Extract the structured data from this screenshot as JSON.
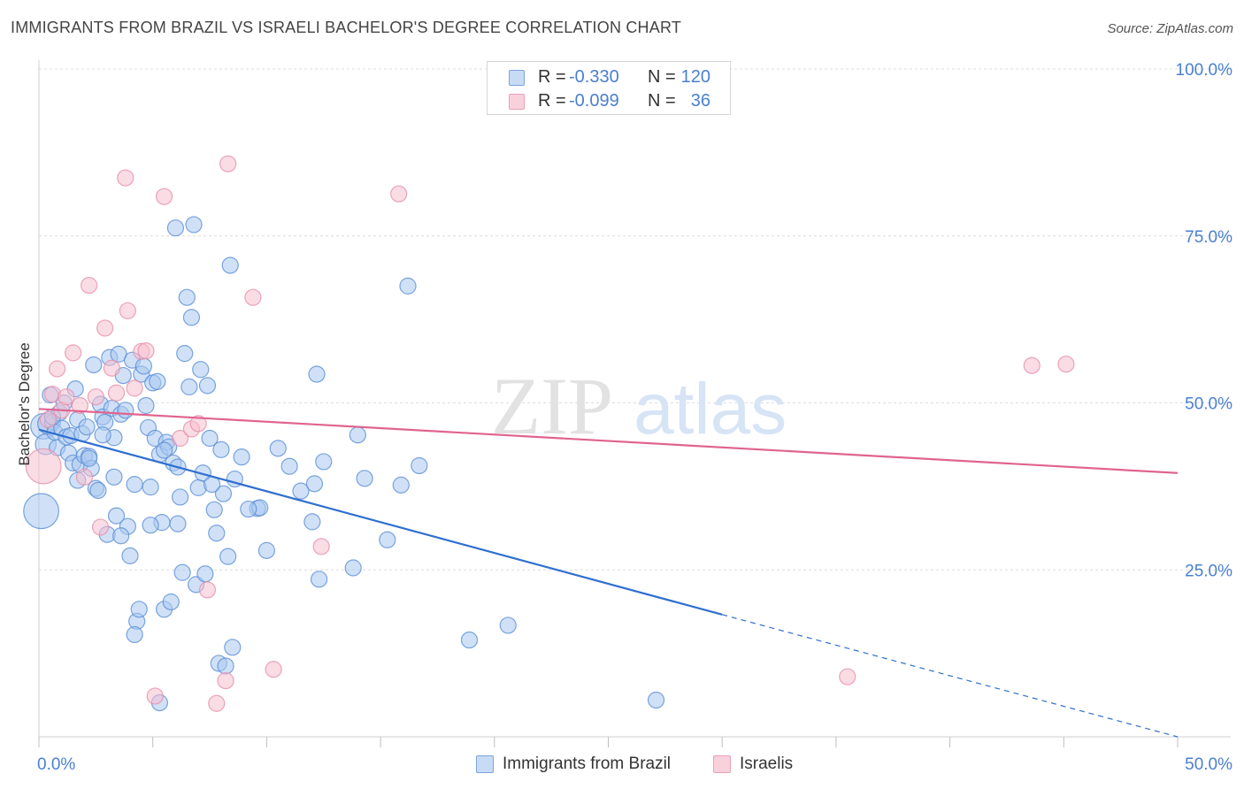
{
  "title": "IMMIGRANTS FROM BRAZIL VS ISRAELI BACHELOR'S DEGREE CORRELATION CHART",
  "source": "Source: ZipAtlas.com",
  "watermark": {
    "zip": "ZIP",
    "atlas": "atlas"
  },
  "colors": {
    "brazil_fill": "#a9c8f0",
    "brazil_stroke": "#5b8fd6",
    "brazil_line": "#2f6fd0",
    "israeli_fill": "#f6c0d0",
    "israeli_stroke": "#e68fab",
    "israeli_line": "#e0648f",
    "grid": "#dcdcdc",
    "tick_label": "#4a80d0"
  },
  "stats": [
    {
      "r_label": "R =",
      "r_value": "-0.330",
      "n_label": "N =",
      "n_value": "120"
    },
    {
      "r_label": "R =",
      "r_value": "-0.099",
      "n_label": "N =",
      "n_value": "36"
    }
  ],
  "legend": [
    "Immigrants from Brazil",
    "Israelis"
  ],
  "chart_data": {
    "type": "scatter",
    "title": "IMMIGRANTS FROM BRAZIL VS ISRAELI BACHELOR'S DEGREE CORRELATION CHART",
    "xlabel": "",
    "ylabel": "Bachelor's Degree",
    "xlim": [
      0,
      50
    ],
    "ylim": [
      0,
      100
    ],
    "x_tick_labels": [
      "0.0%",
      "50.0%"
    ],
    "y_ticks": [
      {
        "value": 25,
        "label": "25.0%"
      },
      {
        "value": 50,
        "label": "50.0%"
      },
      {
        "value": 75,
        "label": "75.0%"
      },
      {
        "value": 100,
        "label": "100.0%"
      }
    ],
    "grid": true,
    "legend_position": "bottom-center",
    "series": [
      {
        "name": "Immigrants from Brazil",
        "trend": {
          "x1": 0,
          "y1": 46,
          "x2": 30,
          "y2": 18.3,
          "dashed_to_x": 50,
          "dashed_to_y": 0
        },
        "points": [
          [
            0.1,
            33.8,
            2.2
          ],
          [
            0.2,
            46.5,
            1.6
          ],
          [
            0.3,
            43.8,
            1.3
          ],
          [
            0.4,
            46.9,
            1.3
          ],
          [
            0.5,
            51.2,
            1
          ],
          [
            0.6,
            47.1,
            1
          ],
          [
            0.7,
            45.6,
            1
          ],
          [
            0.8,
            43.3,
            1
          ],
          [
            0.9,
            48.5,
            1
          ],
          [
            1,
            46.2,
            1
          ],
          [
            1.1,
            50,
            1
          ],
          [
            1.2,
            44.9,
            1
          ],
          [
            1.3,
            42.5,
            1
          ],
          [
            1.4,
            45.1,
            1
          ],
          [
            1.5,
            41,
            1
          ],
          [
            1.6,
            52.1,
            1
          ],
          [
            1.7,
            47.5,
            1
          ],
          [
            1.8,
            40.8,
            1
          ],
          [
            1.9,
            45.4,
            1
          ],
          [
            2,
            42.1,
            1
          ],
          [
            2.1,
            46.4,
            1
          ],
          [
            2.2,
            42,
            1
          ],
          [
            2.3,
            40.2,
            1
          ],
          [
            2.4,
            55.7,
            1
          ],
          [
            2.5,
            37.2,
            1
          ],
          [
            2.6,
            36.9,
            1
          ],
          [
            2.7,
            49.8,
            1
          ],
          [
            2.8,
            47.9,
            1
          ],
          [
            2.9,
            47.1,
            1
          ],
          [
            3,
            30.3,
            1
          ],
          [
            3.1,
            56.8,
            1
          ],
          [
            3.2,
            49.2,
            1
          ],
          [
            3.3,
            44.8,
            1
          ],
          [
            3.4,
            33.1,
            1
          ],
          [
            3.5,
            57.3,
            1
          ],
          [
            3.6,
            48.3,
            1
          ],
          [
            3.7,
            54.1,
            1
          ],
          [
            3.8,
            48.9,
            1
          ],
          [
            3.9,
            31.5,
            1
          ],
          [
            4,
            27.1,
            1
          ],
          [
            4.1,
            56.4,
            1
          ],
          [
            4.2,
            37.8,
            1
          ],
          [
            4.3,
            17.3,
            1
          ],
          [
            4.4,
            19.1,
            1
          ],
          [
            4.5,
            54.3,
            1
          ],
          [
            4.6,
            55.5,
            1
          ],
          [
            4.7,
            49.6,
            1
          ],
          [
            4.8,
            46.3,
            1
          ],
          [
            4.9,
            37.4,
            1
          ],
          [
            5,
            53,
            1
          ],
          [
            5.1,
            44.7,
            1
          ],
          [
            5.2,
            53.2,
            1
          ],
          [
            5.3,
            42.3,
            1
          ],
          [
            5.4,
            32.1,
            1
          ],
          [
            5.5,
            19.1,
            1
          ],
          [
            5.6,
            44.1,
            1
          ],
          [
            5.7,
            43.4,
            1
          ],
          [
            5.8,
            20.2,
            1
          ],
          [
            5.9,
            41,
            1
          ],
          [
            6,
            76.2,
            1
          ],
          [
            6.1,
            40.4,
            1
          ],
          [
            6.2,
            35.9,
            1
          ],
          [
            6.3,
            24.6,
            1
          ],
          [
            6.4,
            57.4,
            1
          ],
          [
            6.5,
            65.8,
            1
          ],
          [
            6.6,
            52.4,
            1
          ],
          [
            6.7,
            62.8,
            1
          ],
          [
            6.8,
            76.7,
            1
          ],
          [
            6.9,
            22.8,
            1
          ],
          [
            7,
            37.3,
            1
          ],
          [
            7.1,
            55,
            1
          ],
          [
            7.2,
            39.5,
            1
          ],
          [
            7.3,
            24.4,
            1
          ],
          [
            7.4,
            52.6,
            1
          ],
          [
            7.5,
            44.7,
            1
          ],
          [
            7.7,
            34,
            1
          ],
          [
            7.8,
            30.5,
            1
          ],
          [
            7.9,
            11,
            1
          ],
          [
            8,
            43,
            1
          ],
          [
            8.1,
            36.4,
            1
          ],
          [
            8.2,
            10.6,
            1
          ],
          [
            8.3,
            27,
            1
          ],
          [
            8.4,
            70.6,
            1
          ],
          [
            8.5,
            13.4,
            1
          ],
          [
            8.6,
            38.6,
            1
          ],
          [
            9.6,
            34.2,
            1
          ],
          [
            9.7,
            34.3,
            1
          ],
          [
            10,
            27.9,
            1
          ],
          [
            10.5,
            43.2,
            1
          ],
          [
            11,
            40.5,
            1
          ],
          [
            11.5,
            36.8,
            1
          ],
          [
            12,
            32.2,
            1
          ],
          [
            12.1,
            37.9,
            1
          ],
          [
            12.2,
            54.3,
            1
          ],
          [
            12.3,
            23.6,
            1
          ],
          [
            12.5,
            41.2,
            1
          ],
          [
            13.8,
            25.3,
            1
          ],
          [
            14,
            45.2,
            1
          ],
          [
            14.3,
            38.7,
            1
          ],
          [
            15.3,
            29.5,
            1
          ],
          [
            15.9,
            37.7,
            1
          ],
          [
            16.2,
            67.5,
            1
          ],
          [
            16.7,
            40.6,
            1
          ],
          [
            18.9,
            14.5,
            1
          ],
          [
            20.6,
            16.7,
            1
          ],
          [
            27.1,
            5.5,
            1
          ],
          [
            5.3,
            5.1,
            1
          ],
          [
            4.2,
            15.3,
            1
          ],
          [
            6.1,
            31.9,
            1
          ],
          [
            2.8,
            45.2,
            1
          ],
          [
            9.2,
            34.1,
            1
          ],
          [
            4.9,
            31.7,
            1
          ],
          [
            3.3,
            38.9,
            1
          ],
          [
            1.7,
            38.4,
            1
          ],
          [
            0.6,
            47.9,
            1
          ],
          [
            2.2,
            41.7,
            1
          ],
          [
            3.6,
            30.1,
            1
          ],
          [
            5.5,
            42.9,
            1
          ],
          [
            7.6,
            37.8,
            1
          ],
          [
            8.9,
            41.9,
            1
          ]
        ]
      },
      {
        "name": "Israelis",
        "trend": {
          "x1": 0,
          "y1": 49.1,
          "x2": 50,
          "y2": 39.5
        },
        "points": [
          [
            0.2,
            40.5,
            2.2
          ],
          [
            0.6,
            51.3,
            1
          ],
          [
            0.8,
            55.1,
            1
          ],
          [
            1,
            48.9,
            1
          ],
          [
            1.2,
            50.9,
            1
          ],
          [
            1.5,
            57.5,
            1
          ],
          [
            1.8,
            49.6,
            1
          ],
          [
            2,
            38.9,
            1
          ],
          [
            2.2,
            67.6,
            1
          ],
          [
            2.5,
            50.9,
            1
          ],
          [
            2.7,
            31.4,
            1
          ],
          [
            2.9,
            61.2,
            1
          ],
          [
            3.2,
            55.2,
            1
          ],
          [
            3.4,
            51.5,
            1
          ],
          [
            3.8,
            83.7,
            1
          ],
          [
            3.9,
            63.8,
            1
          ],
          [
            4.2,
            52.2,
            1
          ],
          [
            4.5,
            57.7,
            1
          ],
          [
            4.7,
            57.8,
            1
          ],
          [
            5.1,
            6.1,
            1
          ],
          [
            5.5,
            80.9,
            1
          ],
          [
            6.2,
            44.7,
            1
          ],
          [
            6.7,
            46.1,
            1
          ],
          [
            7,
            46.9,
            1
          ],
          [
            7.4,
            22,
            1
          ],
          [
            7.8,
            5,
            1
          ],
          [
            8.2,
            8.4,
            1
          ],
          [
            8.3,
            85.8,
            1
          ],
          [
            9.4,
            65.8,
            1
          ],
          [
            10.3,
            10.1,
            1
          ],
          [
            12.4,
            28.5,
            1
          ],
          [
            15.8,
            81.3,
            1
          ],
          [
            35.5,
            9,
            1
          ],
          [
            43.6,
            55.6,
            1
          ],
          [
            45.1,
            55.8,
            1
          ],
          [
            0.4,
            47.5,
            1
          ]
        ]
      }
    ]
  }
}
